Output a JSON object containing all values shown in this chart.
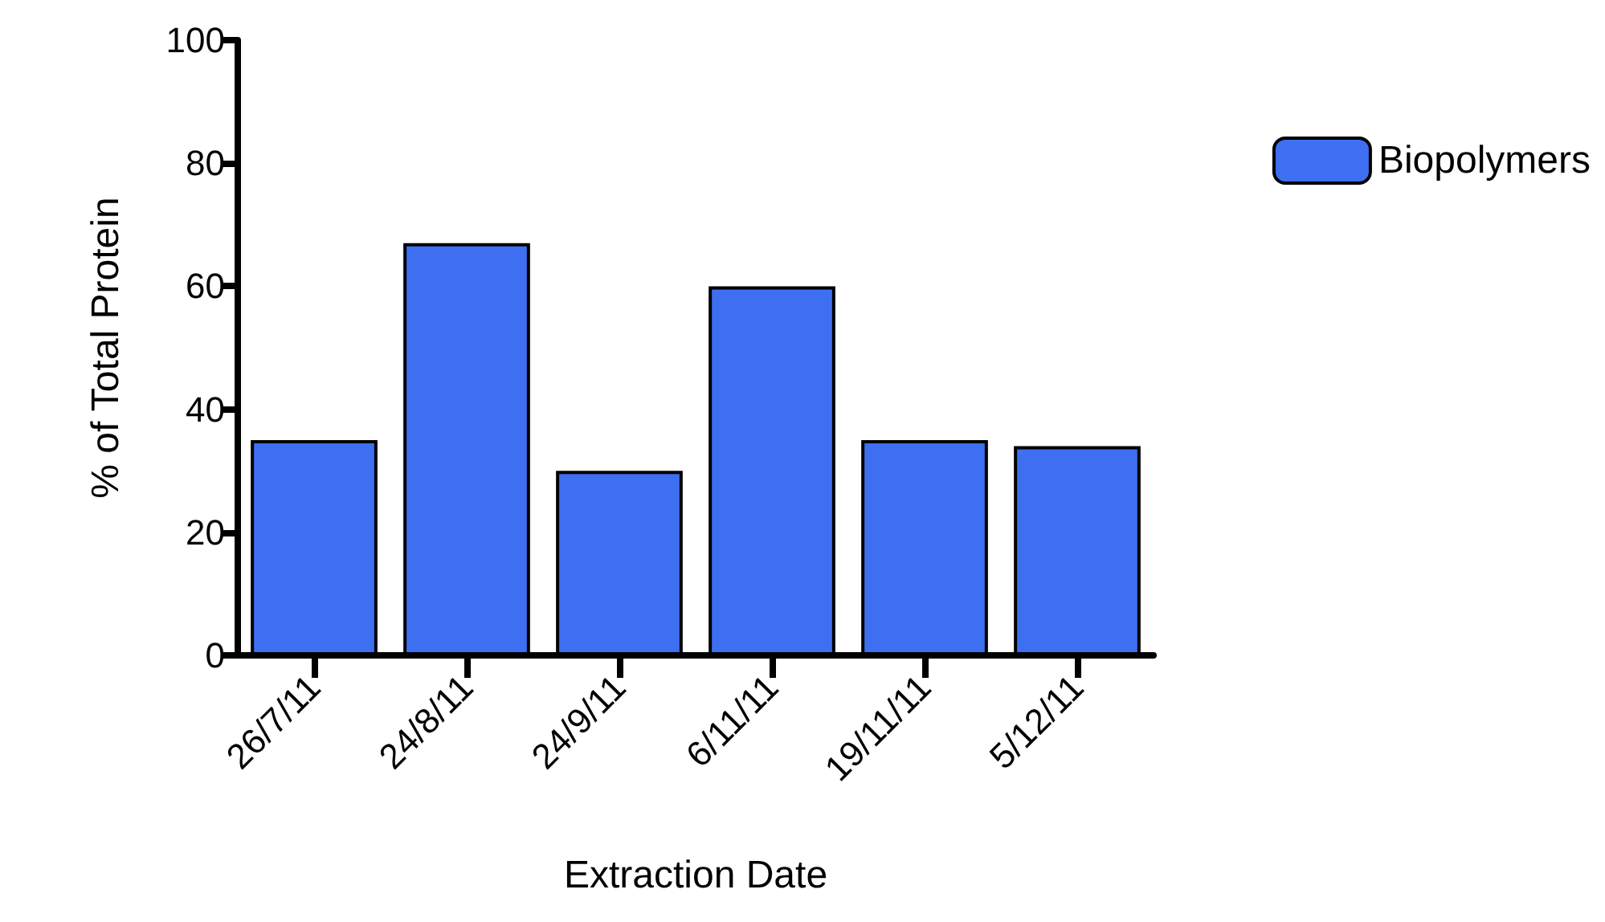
{
  "chart_data": {
    "type": "bar",
    "xlabel": "Extraction Date",
    "ylabel": "% of Total Protein",
    "categories": [
      "26/7/11",
      "24/8/11",
      "24/9/11",
      "6/11/11",
      "19/11/11",
      "5/12/11"
    ],
    "series": [
      {
        "name": "Biopolymers",
        "color": "#3d6ff0",
        "values": [
          35,
          67,
          30,
          60,
          35,
          34
        ]
      }
    ],
    "ylim": [
      0,
      100
    ],
    "yticks": [
      0,
      20,
      40,
      60,
      80,
      100
    ],
    "grid": false,
    "legend": "top right"
  }
}
